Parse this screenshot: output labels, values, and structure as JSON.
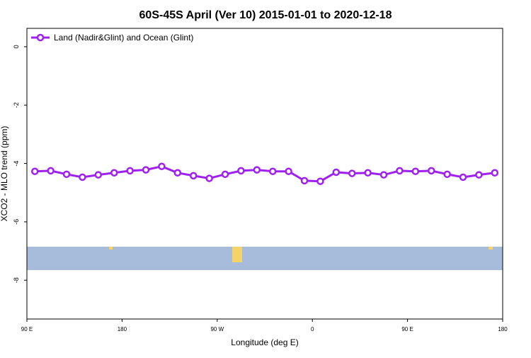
{
  "chart_data": {
    "type": "line",
    "title": "60S-45S April (Ver 10)   2015-01-01 to 2020-12-18",
    "x_label": "Longitude (deg E)",
    "y_label": "XCO2 - MLO trend (ppm)",
    "x": [
      97.5,
      112.5,
      127.5,
      142.5,
      157.5,
      172.5,
      187.5,
      202.5,
      217.5,
      232.5,
      247.5,
      262.5,
      277.5,
      292.5,
      307.5,
      322.5,
      337.5,
      352.5,
      367.5,
      382.5,
      397.5,
      412.5,
      427.5,
      442.5,
      457.5,
      472.5,
      487.5,
      502.5,
      517.5,
      532.5
    ],
    "series": [
      {
        "name": "Land (Nadir&Glint) and Ocean (Glint)",
        "color": "#a020f0",
        "values": [
          -4.27,
          -4.25,
          -4.37,
          -4.47,
          -4.39,
          -4.32,
          -4.25,
          -4.22,
          -4.1,
          -4.32,
          -4.42,
          -4.51,
          -4.37,
          -4.25,
          -4.22,
          -4.27,
          -4.27,
          -4.59,
          -4.61,
          -4.3,
          -4.34,
          -4.32,
          -4.39,
          -4.25,
          -4.27,
          -4.25,
          -4.37,
          -4.47,
          -4.39,
          -4.32
        ]
      }
    ],
    "xlim": [
      90,
      540
    ],
    "xticks": [
      {
        "value": 90,
        "label": "90 E"
      },
      180,
      {
        "value": 270,
        "label": "90 W"
      },
      {
        "value": 360,
        "label": "0"
      },
      {
        "value": 450,
        "label": "90 E"
      },
      {
        "value": 540,
        "label": "180"
      }
    ],
    "ylim": [
      -9.33,
      0.63
    ],
    "yticks": [
      0,
      -2,
      -4,
      -6,
      -8
    ],
    "legend": "top-left"
  }
}
